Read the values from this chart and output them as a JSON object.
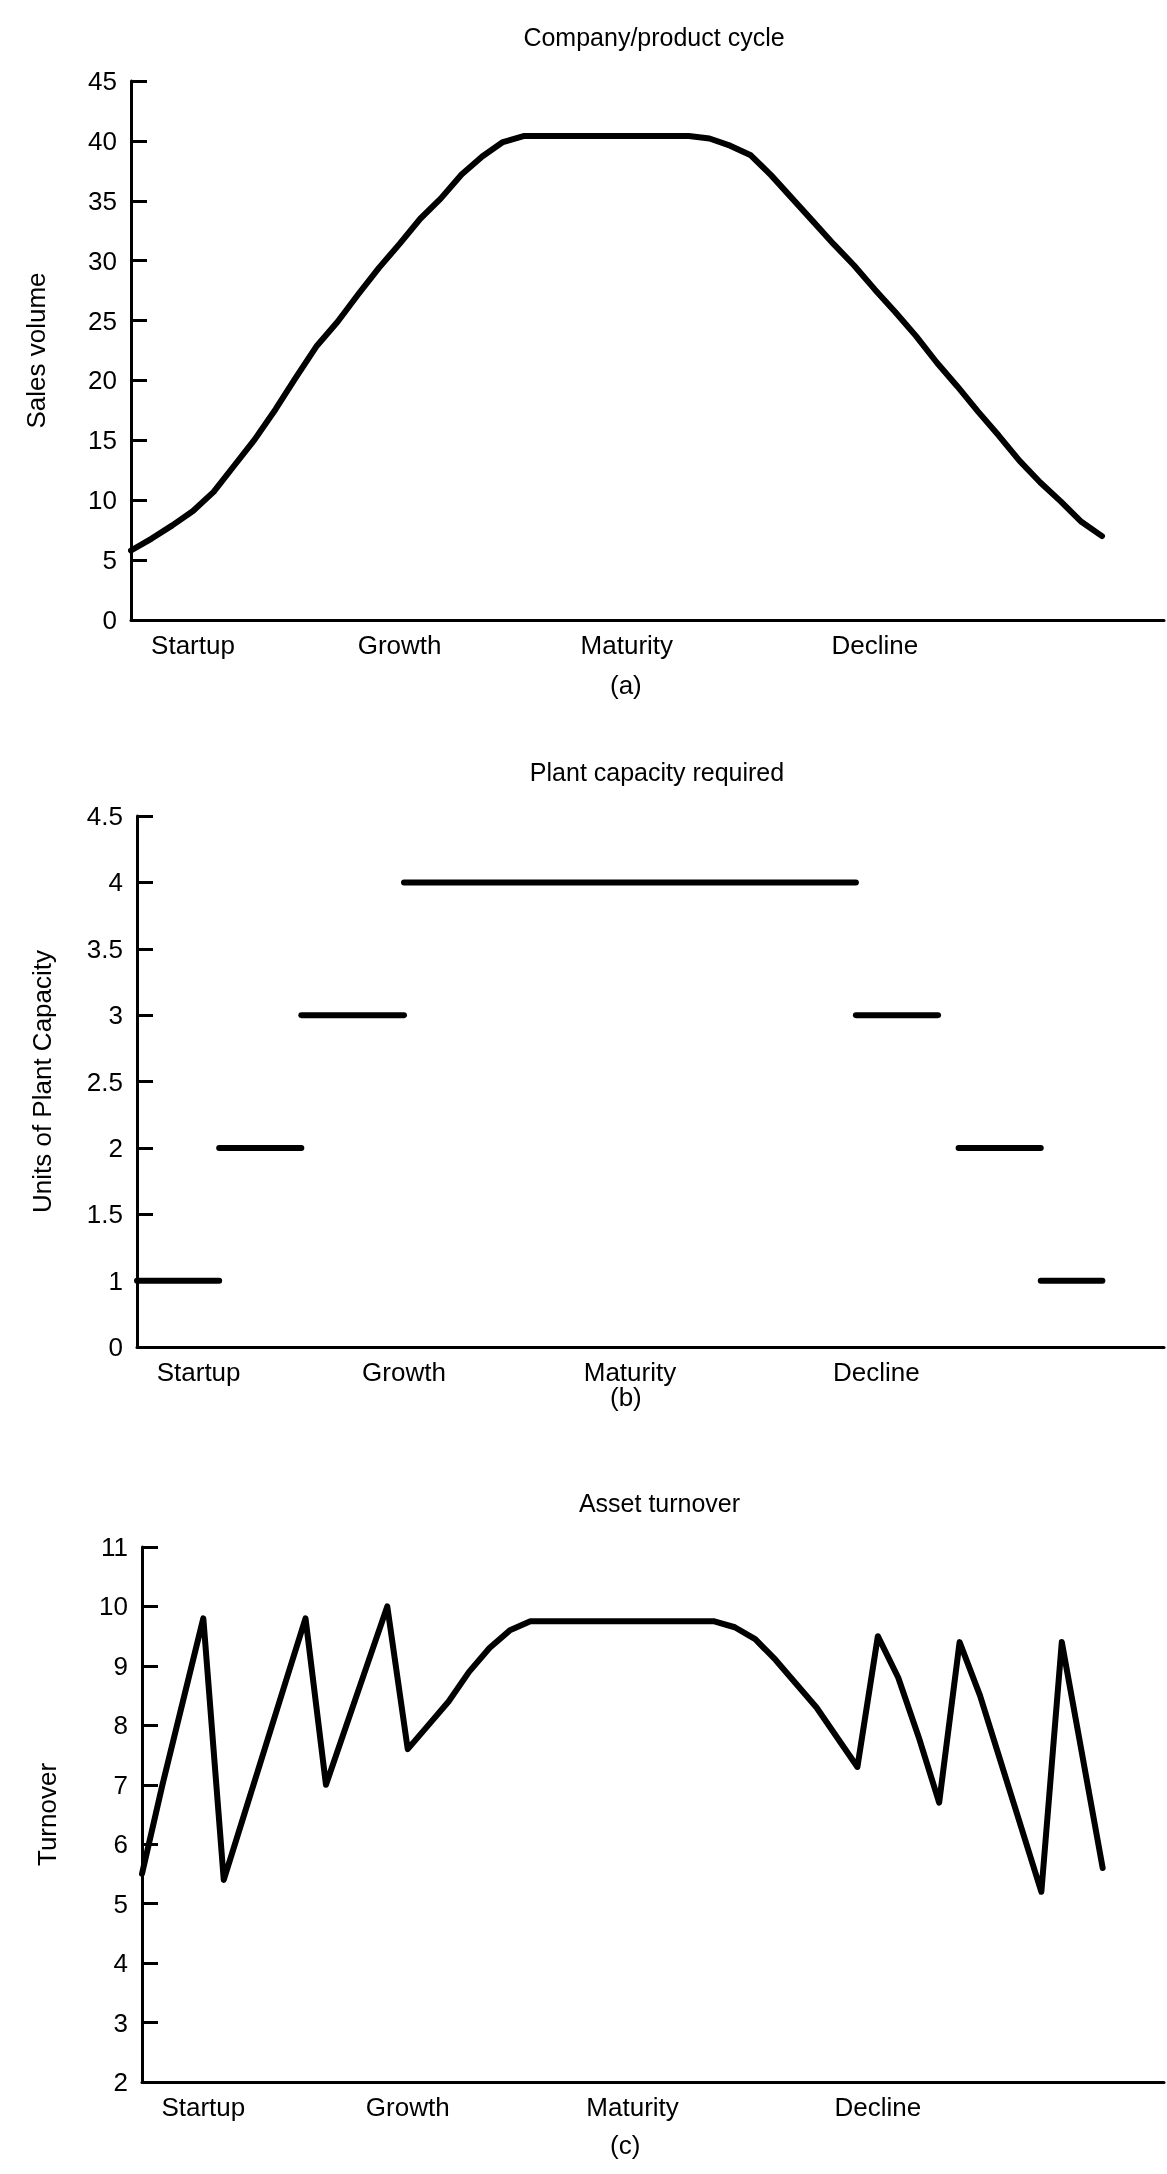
{
  "chart_data": [
    {
      "type": "line",
      "title": "Company/product cycle",
      "ylabel": "Sales volume",
      "annotations": [
        "(a)"
      ],
      "marker": "none",
      "line_style": "solid",
      "categories": [
        null,
        null,
        null,
        "Startup",
        null,
        null,
        null,
        null,
        null,
        null,
        null,
        null,
        null,
        "Growth",
        null,
        null,
        null,
        null,
        null,
        null,
        null,
        null,
        null,
        null,
        "Maturity",
        null,
        null,
        null,
        null,
        null,
        null,
        null,
        null,
        null,
        null,
        null,
        "Decline",
        null,
        null,
        null,
        null,
        null,
        null,
        null,
        null,
        null,
        null,
        null,
        null,
        null,
        null
      ],
      "ylim": [
        0,
        45
      ],
      "yticks": [
        0,
        5,
        10,
        15,
        20,
        25,
        30,
        35,
        40,
        45
      ],
      "series": [
        {
          "color": "#000000",
          "values": [
            5.8,
            6.8,
            7.9,
            9.1,
            10.7,
            12.9,
            15.1,
            17.6,
            20.3,
            22.9,
            24.9,
            27.2,
            29.4,
            31.4,
            33.5,
            35.2,
            37.2,
            38.7,
            39.9,
            40.4,
            40.4,
            40.4,
            40.4,
            40.4,
            40.4,
            40.4,
            40.4,
            40.4,
            40.2,
            39.6,
            38.8,
            37.1,
            35.2,
            33.3,
            31.4,
            29.6,
            27.6,
            25.7,
            23.7,
            21.5,
            19.5,
            17.4,
            15.4,
            13.3,
            11.5,
            9.9,
            8.2,
            7.0,
            null,
            null,
            null
          ]
        }
      ]
    },
    {
      "type": "line",
      "title": "Plant capacity required",
      "ylabel": "Units of Plant Capacity",
      "annotations": [
        "(b)"
      ],
      "marker": "none",
      "line_style": "solid",
      "categories": [
        null,
        null,
        null,
        "Startup",
        null,
        null,
        null,
        null,
        null,
        null,
        null,
        null,
        null,
        "Growth",
        null,
        null,
        null,
        null,
        null,
        null,
        null,
        null,
        null,
        null,
        "Maturity",
        null,
        null,
        null,
        null,
        null,
        null,
        null,
        null,
        null,
        null,
        null,
        "Decline",
        null,
        null,
        null,
        null,
        null,
        null,
        null,
        null,
        null,
        null,
        null,
        null,
        null,
        null
      ],
      "ylim": [
        0.5,
        4.5
      ],
      "yticks": [
        {
          "value": 0.5,
          "label": "0"
        },
        1,
        1.5,
        2,
        2.5,
        3,
        3.5,
        4,
        4.5
      ],
      "series": [
        {
          "color": "#000000",
          "values": [
            1,
            1,
            1,
            1,
            1,
            null,
            null,
            null,
            null,
            null,
            null,
            null,
            null,
            null,
            null,
            null,
            null,
            null,
            null,
            null,
            null,
            null,
            null,
            null,
            null,
            null,
            null,
            null,
            null,
            null,
            null,
            null,
            null,
            null,
            null,
            null,
            null,
            null,
            null,
            null,
            null,
            null,
            null,
            null,
            null,
            null,
            null,
            null,
            null,
            null,
            null
          ]
        },
        {
          "color": "#000000",
          "values": [
            null,
            null,
            null,
            null,
            2,
            2,
            2,
            2,
            2,
            null,
            null,
            null,
            null,
            null,
            null,
            null,
            null,
            null,
            null,
            null,
            null,
            null,
            null,
            null,
            null,
            null,
            null,
            null,
            null,
            null,
            null,
            null,
            null,
            null,
            null,
            null,
            null,
            null,
            null,
            null,
            null,
            null,
            null,
            null,
            null,
            null,
            null,
            null,
            null,
            null,
            null
          ]
        },
        {
          "color": "#000000",
          "values": [
            null,
            null,
            null,
            null,
            null,
            null,
            null,
            null,
            3,
            3,
            3,
            3,
            3,
            3,
            null,
            null,
            null,
            null,
            null,
            null,
            null,
            null,
            null,
            null,
            null,
            null,
            null,
            null,
            null,
            null,
            null,
            null,
            null,
            null,
            null,
            null,
            null,
            null,
            null,
            null,
            null,
            null,
            null,
            null,
            null,
            null,
            null,
            null,
            null,
            null,
            null
          ]
        },
        {
          "color": "#000000",
          "values": [
            null,
            null,
            null,
            null,
            null,
            null,
            null,
            null,
            null,
            null,
            null,
            null,
            null,
            4,
            4,
            4,
            4,
            4,
            4,
            4,
            4,
            4,
            4,
            4,
            4,
            4,
            4,
            4,
            4,
            4,
            4,
            4,
            4,
            4,
            4,
            4,
            null,
            null,
            null,
            null,
            null,
            null,
            null,
            null,
            null,
            null,
            null,
            null,
            null,
            null,
            null
          ]
        },
        {
          "color": "#000000",
          "values": [
            null,
            null,
            null,
            null,
            null,
            null,
            null,
            null,
            null,
            null,
            null,
            null,
            null,
            null,
            null,
            null,
            null,
            null,
            null,
            null,
            null,
            null,
            null,
            null,
            null,
            null,
            null,
            null,
            null,
            null,
            null,
            null,
            null,
            null,
            null,
            3,
            3,
            3,
            3,
            3,
            null,
            null,
            null,
            null,
            null,
            null,
            null,
            null,
            null,
            null,
            null
          ]
        },
        {
          "color": "#000000",
          "values": [
            null,
            null,
            null,
            null,
            null,
            null,
            null,
            null,
            null,
            null,
            null,
            null,
            null,
            null,
            null,
            null,
            null,
            null,
            null,
            null,
            null,
            null,
            null,
            null,
            null,
            null,
            null,
            null,
            null,
            null,
            null,
            null,
            null,
            null,
            null,
            null,
            null,
            null,
            null,
            null,
            2,
            2,
            2,
            2,
            2,
            null,
            null,
            null,
            null,
            null,
            null
          ]
        },
        {
          "color": "#000000",
          "values": [
            null,
            null,
            null,
            null,
            null,
            null,
            null,
            null,
            null,
            null,
            null,
            null,
            null,
            null,
            null,
            null,
            null,
            null,
            null,
            null,
            null,
            null,
            null,
            null,
            null,
            null,
            null,
            null,
            null,
            null,
            null,
            null,
            null,
            null,
            null,
            null,
            null,
            null,
            null,
            null,
            null,
            null,
            null,
            null,
            1,
            1,
            1,
            1,
            null,
            null,
            null
          ]
        }
      ]
    },
    {
      "type": "line",
      "title": "Asset turnover",
      "ylabel": "Turnover",
      "annotations": [
        "(c)"
      ],
      "marker": "none",
      "line_style": "solid",
      "categories": [
        null,
        null,
        null,
        "Startup",
        null,
        null,
        null,
        null,
        null,
        null,
        null,
        null,
        null,
        "Growth",
        null,
        null,
        null,
        null,
        null,
        null,
        null,
        null,
        null,
        null,
        "Maturity",
        null,
        null,
        null,
        null,
        null,
        null,
        null,
        null,
        null,
        null,
        null,
        "Decline",
        null,
        null,
        null,
        null,
        null,
        null,
        null,
        null,
        null,
        null,
        null,
        null,
        null,
        null
      ],
      "ylim": [
        2,
        11
      ],
      "yticks": [
        2,
        3,
        4,
        5,
        6,
        7,
        8,
        9,
        10,
        11
      ],
      "series": [
        {
          "color": "#000000",
          "values": [
            5.5,
            7.0,
            8.4,
            9.8,
            5.4,
            6.5,
            7.6,
            8.7,
            9.8,
            7.0,
            8.0,
            9.0,
            10.0,
            7.6,
            8.0,
            8.4,
            8.9,
            9.3,
            9.6,
            9.75,
            9.75,
            9.75,
            9.75,
            9.75,
            9.75,
            9.75,
            9.75,
            9.75,
            9.75,
            9.65,
            9.45,
            9.1,
            8.7,
            8.3,
            7.8,
            7.3,
            9.5,
            8.8,
            7.8,
            6.7,
            9.4,
            8.5,
            7.4,
            6.3,
            5.2,
            9.4,
            7.5,
            5.6,
            null,
            null,
            null
          ]
        }
      ]
    }
  ]
}
